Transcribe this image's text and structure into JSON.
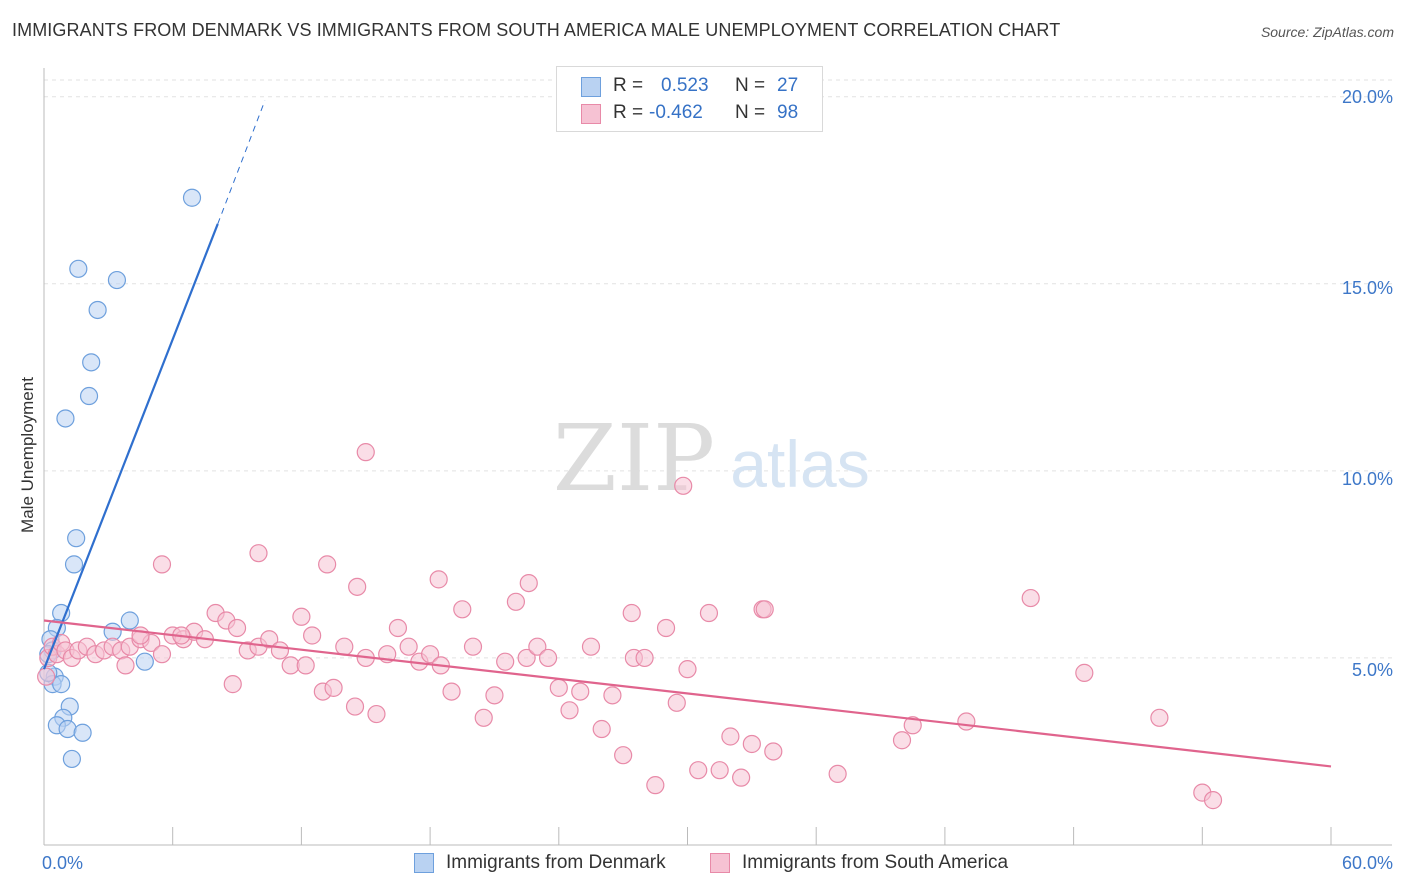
{
  "chart_data": {
    "type": "scatter",
    "title": "IMMIGRANTS FROM DENMARK VS IMMIGRANTS FROM SOUTH AMERICA MALE UNEMPLOYMENT CORRELATION CHART",
    "source": "Source: ZipAtlas.com",
    "ylabel": "Male Unemployment",
    "xlim": [
      0,
      60
    ],
    "ylim": [
      0,
      20.5
    ],
    "y_ticks": [
      {
        "value": 5,
        "label": "5.0%"
      },
      {
        "value": 10,
        "label": "10.0%"
      },
      {
        "value": 15,
        "label": "15.0%"
      },
      {
        "value": 20,
        "label": "20.0%"
      }
    ],
    "x_tick_labels": {
      "min": "0.0%",
      "max": "60.0%"
    },
    "x_minor_ticks": [
      6,
      12,
      18,
      24,
      30,
      36,
      42,
      48,
      54,
      60
    ],
    "watermark": {
      "zip": "ZIP",
      "atlas": "atlas"
    },
    "series": [
      {
        "name": "Immigrants from Denmark",
        "color": "#6ea0dd",
        "fill": "#b9d2f2",
        "line_color": "#2f6fce",
        "R": "0.523",
        "N": "27",
        "trend": {
          "x0": 0.0,
          "y0": 4.7,
          "x1": 8.1,
          "y1": 16.6,
          "dash_to_x": 10.3,
          "dash_to_y": 19.9
        },
        "points": [
          [
            6.9,
            17.3
          ],
          [
            1.6,
            15.4
          ],
          [
            3.4,
            15.1
          ],
          [
            2.5,
            14.3
          ],
          [
            2.2,
            12.9
          ],
          [
            2.1,
            12.0
          ],
          [
            1.0,
            11.4
          ],
          [
            1.5,
            8.2
          ],
          [
            1.4,
            7.5
          ],
          [
            0.8,
            6.2
          ],
          [
            0.6,
            5.8
          ],
          [
            4.0,
            6.0
          ],
          [
            3.2,
            5.7
          ],
          [
            0.3,
            5.5
          ],
          [
            0.4,
            5.2
          ],
          [
            0.2,
            5.1
          ],
          [
            4.7,
            4.9
          ],
          [
            0.5,
            4.5
          ],
          [
            0.4,
            4.3
          ],
          [
            0.8,
            4.3
          ],
          [
            1.2,
            3.7
          ],
          [
            0.9,
            3.4
          ],
          [
            0.6,
            3.2
          ],
          [
            1.1,
            3.1
          ],
          [
            1.8,
            3.0
          ],
          [
            1.3,
            2.3
          ],
          [
            0.2,
            4.6
          ]
        ]
      },
      {
        "name": "Immigrants from South America",
        "color": "#e88aa8",
        "fill": "#f6c2d3",
        "line_color": "#e0648d",
        "R": "-0.462",
        "N": "98",
        "trend": {
          "x0": 0.0,
          "y0": 6.0,
          "x1": 60.0,
          "y1": 2.1
        },
        "points": [
          [
            0.2,
            5.0
          ],
          [
            0.4,
            5.3
          ],
          [
            0.6,
            5.1
          ],
          [
            0.8,
            5.4
          ],
          [
            1.0,
            5.2
          ],
          [
            1.3,
            5.0
          ],
          [
            1.6,
            5.2
          ],
          [
            2.0,
            5.3
          ],
          [
            2.4,
            5.1
          ],
          [
            2.8,
            5.2
          ],
          [
            3.2,
            5.3
          ],
          [
            3.6,
            5.2
          ],
          [
            4.0,
            5.3
          ],
          [
            4.5,
            5.5
          ],
          [
            5.0,
            5.4
          ],
          [
            5.5,
            5.1
          ],
          [
            6.0,
            5.6
          ],
          [
            6.5,
            5.5
          ],
          [
            7.0,
            5.7
          ],
          [
            7.5,
            5.5
          ],
          [
            8.0,
            6.2
          ],
          [
            8.5,
            6.0
          ],
          [
            9.0,
            5.8
          ],
          [
            9.5,
            5.2
          ],
          [
            10.0,
            5.3
          ],
          [
            10.5,
            5.5
          ],
          [
            11.0,
            5.2
          ],
          [
            11.5,
            4.8
          ],
          [
            12.0,
            6.1
          ],
          [
            12.5,
            5.6
          ],
          [
            13.0,
            4.1
          ],
          [
            13.5,
            4.2
          ],
          [
            14.0,
            5.3
          ],
          [
            14.5,
            3.7
          ],
          [
            15.0,
            5.0
          ],
          [
            15.5,
            3.5
          ],
          [
            16.0,
            5.1
          ],
          [
            16.5,
            5.8
          ],
          [
            17.0,
            5.3
          ],
          [
            17.5,
            4.9
          ],
          [
            18.0,
            5.1
          ],
          [
            18.5,
            4.8
          ],
          [
            19.0,
            4.1
          ],
          [
            19.5,
            6.3
          ],
          [
            20.0,
            5.3
          ],
          [
            20.5,
            3.4
          ],
          [
            21.0,
            4.0
          ],
          [
            21.5,
            4.9
          ],
          [
            22.0,
            6.5
          ],
          [
            22.5,
            5.0
          ],
          [
            23.0,
            5.3
          ],
          [
            23.5,
            5.0
          ],
          [
            24.0,
            4.2
          ],
          [
            24.5,
            3.6
          ],
          [
            25.0,
            4.1
          ],
          [
            25.5,
            5.3
          ],
          [
            26.0,
            3.1
          ],
          [
            26.5,
            4.0
          ],
          [
            27.0,
            2.4
          ],
          [
            27.5,
            5.0
          ],
          [
            28.0,
            5.0
          ],
          [
            28.5,
            1.6
          ],
          [
            29.0,
            5.8
          ],
          [
            29.5,
            3.8
          ],
          [
            30.0,
            4.7
          ],
          [
            30.5,
            2.0
          ],
          [
            31.0,
            6.2
          ],
          [
            31.5,
            2.0
          ],
          [
            32.0,
            2.9
          ],
          [
            32.5,
            1.8
          ],
          [
            33.0,
            2.7
          ],
          [
            33.5,
            6.3
          ],
          [
            34.0,
            2.5
          ],
          [
            37.0,
            1.9
          ],
          [
            40.0,
            2.8
          ],
          [
            40.5,
            3.2
          ],
          [
            43.0,
            3.3
          ],
          [
            46.0,
            6.6
          ],
          [
            48.5,
            4.6
          ],
          [
            52.0,
            3.4
          ],
          [
            54.0,
            1.4
          ],
          [
            54.5,
            1.2
          ],
          [
            15.0,
            10.5
          ],
          [
            29.8,
            9.6
          ],
          [
            10.0,
            7.8
          ],
          [
            5.5,
            7.5
          ],
          [
            13.2,
            7.5
          ],
          [
            14.6,
            6.9
          ],
          [
            18.4,
            7.1
          ],
          [
            22.6,
            7.0
          ],
          [
            27.4,
            6.2
          ],
          [
            4.5,
            5.6
          ],
          [
            6.4,
            5.6
          ],
          [
            3.8,
            4.8
          ],
          [
            8.8,
            4.3
          ],
          [
            12.2,
            4.8
          ],
          [
            33.6,
            6.3
          ],
          [
            0.1,
            4.5
          ]
        ]
      }
    ]
  }
}
